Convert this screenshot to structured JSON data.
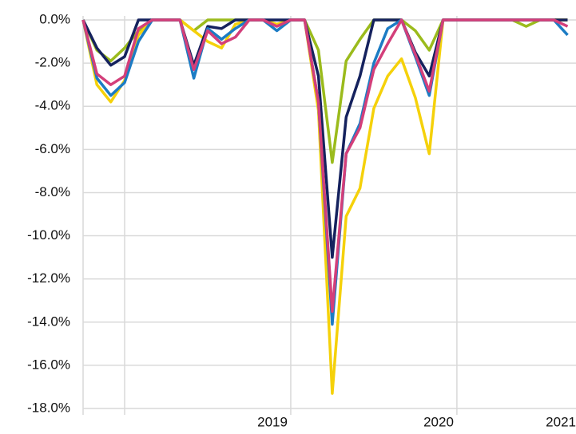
{
  "chart_data": {
    "type": "line",
    "x": [
      0,
      1,
      2,
      3,
      4,
      5,
      6,
      7,
      8,
      9,
      10,
      11,
      12,
      13,
      14,
      15,
      16,
      17,
      18,
      19,
      20,
      21,
      22,
      23,
      24,
      25,
      26,
      27,
      28,
      29,
      30,
      31,
      32,
      33,
      34,
      35
    ],
    "series": [
      {
        "color": "#9bbb1c",
        "values": [
          0,
          -1.4,
          -1.9,
          -1.3,
          -0.5,
          0,
          0,
          0,
          -0.5,
          0,
          0,
          0,
          0,
          0,
          -0.2,
          0,
          0,
          -1.4,
          -6.6,
          -1.9,
          -0.9,
          0,
          0,
          0,
          -0.5,
          -1.4,
          0,
          0,
          0,
          0,
          0,
          0,
          -0.3,
          0,
          0,
          0
        ]
      },
      {
        "color": "#f5d10a",
        "values": [
          0,
          -3.0,
          -3.8,
          -2.8,
          -0.7,
          0,
          0,
          0,
          -0.5,
          -1.0,
          -1.3,
          -0.2,
          0,
          0,
          -0.2,
          0,
          0,
          -4.2,
          -17.3,
          -9.1,
          -7.8,
          -4.1,
          -2.6,
          -1.8,
          -3.6,
          -6.2,
          0,
          0,
          0,
          0,
          0,
          0,
          0,
          0,
          0,
          0
        ]
      },
      {
        "color": "#15225e",
        "values": [
          0,
          -1.3,
          -2.1,
          -1.7,
          0,
          0,
          0,
          0,
          -2.1,
          -0.3,
          -0.4,
          0,
          0,
          0,
          0,
          0,
          0,
          -2.6,
          -11.0,
          -4.5,
          -2.6,
          0,
          0,
          0,
          -1.5,
          -2.6,
          0,
          0,
          0,
          0,
          0,
          0,
          0,
          0,
          0,
          0
        ]
      },
      {
        "color": "#1c7cc4",
        "values": [
          0,
          -2.7,
          -3.5,
          -2.9,
          -1.0,
          0,
          0,
          0,
          -2.7,
          -0.4,
          -0.9,
          -0.4,
          0,
          0,
          -0.5,
          0,
          0,
          -3.8,
          -14.1,
          -6.2,
          -4.8,
          -2.0,
          -0.4,
          0,
          -1.7,
          -3.5,
          0,
          0,
          0,
          0,
          0,
          0,
          0,
          0,
          0,
          -0.7
        ]
      },
      {
        "color": "#d33f7a",
        "values": [
          0,
          -2.5,
          -3.0,
          -2.6,
          -0.4,
          0,
          0,
          0,
          -2.3,
          -0.5,
          -1.1,
          -0.8,
          0,
          0,
          -0.3,
          0,
          0,
          -3.8,
          -13.5,
          -6.2,
          -5.0,
          -2.3,
          -1.1,
          0,
          -1.6,
          -3.3,
          0,
          0,
          0,
          0,
          0,
          0,
          0,
          0,
          0,
          -0.3
        ]
      }
    ],
    "xlim": [
      0,
      35.6
    ],
    "xticks": [
      {
        "value": 3,
        "label": null
      },
      {
        "value": 15,
        "label": "2019"
      },
      {
        "value": 27,
        "label": "2020"
      },
      {
        "value": 39,
        "label": "2021"
      }
    ],
    "ylim": [
      -18,
      0
    ],
    "yticks": [
      {
        "value": 0,
        "label": "0.0%"
      },
      {
        "value": -2,
        "label": "-2.0%"
      },
      {
        "value": -4,
        "label": "-4.0%"
      },
      {
        "value": -6,
        "label": "-6.0%"
      },
      {
        "value": -8,
        "label": "-8.0%"
      },
      {
        "value": -10,
        "label": "-10.0%"
      },
      {
        "value": -12,
        "label": "-12.0%"
      },
      {
        "value": -14,
        "label": "-14.0%"
      },
      {
        "value": -16,
        "label": "-16.0%"
      },
      {
        "value": -18,
        "label": "-18.0%"
      }
    ],
    "grid": true
  }
}
